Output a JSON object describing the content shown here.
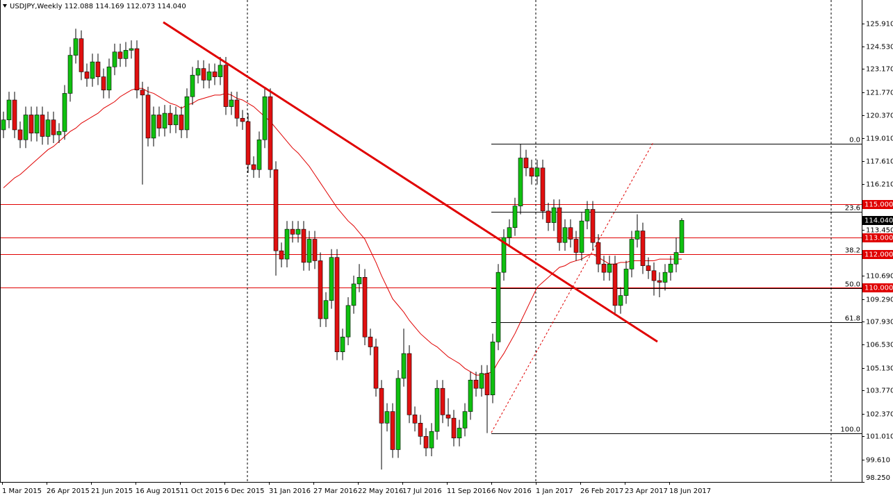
{
  "chart_data": {
    "type": "candlestick",
    "title": "USDJPY,Weekly",
    "up_color": "#10c010",
    "down_color": "#e01010",
    "categories": [
      "1 Mar 2015",
      null,
      null,
      null,
      null,
      null,
      null,
      null,
      "26 Apr 2015",
      null,
      null,
      null,
      null,
      null,
      null,
      null,
      "21 Jun 2015",
      null,
      null,
      null,
      null,
      null,
      null,
      null,
      "16 Aug 2015",
      null,
      null,
      null,
      null,
      null,
      null,
      null,
      "11 Oct 2015",
      null,
      null,
      null,
      null,
      null,
      null,
      null,
      "6 Dec 2015",
      null,
      null,
      null,
      null,
      null,
      null,
      null,
      "31 Jan 2016",
      null,
      null,
      null,
      null,
      null,
      null,
      null,
      "27 Mar 2016",
      null,
      null,
      null,
      null,
      null,
      null,
      null,
      "22 May 2016",
      null,
      null,
      null,
      null,
      null,
      null,
      null,
      "17 Jul 2016",
      null,
      null,
      null,
      null,
      null,
      null,
      null,
      "11 Sep 2016",
      null,
      null,
      null,
      null,
      null,
      null,
      null,
      "6 Nov 2016",
      null,
      null,
      null,
      null,
      null,
      null,
      null,
      "1 Jan 2017",
      null,
      null,
      null,
      null,
      null,
      null,
      null,
      "26 Feb 2017",
      null,
      null,
      null,
      null,
      null,
      null,
      null,
      "23 Apr 2017",
      null,
      null,
      null,
      null,
      null,
      null,
      null,
      "18 Jun 2017",
      null,
      null
    ],
    "open": [
      119.5,
      120.1,
      121.3,
      119.5,
      118.9,
      120.4,
      119.3,
      120.4,
      119.1,
      120.1,
      119.2,
      119.4,
      121.7,
      124.0,
      125.0,
      123.0,
      122.6,
      123.6,
      122.7,
      121.9,
      123.3,
      124.2,
      123.8,
      124.3,
      124.4,
      121.9,
      121.6,
      119.0,
      120.4,
      119.6,
      120.5,
      119.8,
      120.4,
      119.5,
      121.5,
      122.8,
      123.2,
      122.5,
      123.0,
      122.7,
      123.4,
      120.9,
      121.3,
      120.2,
      120.0,
      117.4,
      117.1,
      118.9,
      121.5,
      117.1,
      112.2,
      111.7,
      113.5,
      113.2,
      113.5,
      111.5,
      112.9,
      111.6,
      108.1,
      109.2,
      111.8,
      106.1,
      107.0,
      108.9,
      110.2,
      110.6,
      107.0,
      106.4,
      103.9,
      101.8,
      102.5,
      100.2,
      104.5,
      106.0,
      102.3,
      101.8,
      101.0,
      100.3,
      101.3,
      103.9,
      102.3,
      102.1,
      100.9,
      101.5,
      102.5,
      104.4,
      103.9,
      104.8,
      103.5,
      106.7,
      110.9,
      113.0,
      113.6,
      114.9,
      117.8,
      117.2,
      116.7,
      117.2,
      114.6,
      113.9,
      114.8,
      112.7,
      113.6,
      112.9,
      112.1,
      114.0,
      114.7,
      112.7,
      111.4,
      110.9,
      111.4,
      108.9,
      109.5,
      111.1,
      112.9,
      113.4,
      111.3,
      111.0,
      110.4,
      110.3,
      110.9,
      111.4,
      112.088
    ],
    "high": [
      120.6,
      121.8,
      121.8,
      120.0,
      120.9,
      120.9,
      120.9,
      120.9,
      120.6,
      120.6,
      119.9,
      122.2,
      124.5,
      125.6,
      125.5,
      123.5,
      124.1,
      124.1,
      123.2,
      123.8,
      124.7,
      124.7,
      124.8,
      124.9,
      124.9,
      122.4,
      122.1,
      120.9,
      120.9,
      121.0,
      121.0,
      120.9,
      120.9,
      122.0,
      123.3,
      123.7,
      123.7,
      123.5,
      123.5,
      123.9,
      123.9,
      121.8,
      121.8,
      120.7,
      120.5,
      117.9,
      119.4,
      122.0,
      122.0,
      117.6,
      112.7,
      114.0,
      114.0,
      114.0,
      114.0,
      113.4,
      113.4,
      112.1,
      109.7,
      112.3,
      112.3,
      107.5,
      109.4,
      110.7,
      111.4,
      111.1,
      107.5,
      106.9,
      104.4,
      103.0,
      103.0,
      105.0,
      107.5,
      106.5,
      102.8,
      102.3,
      101.5,
      101.8,
      104.4,
      104.4,
      103.3,
      102.6,
      102.0,
      103.0,
      104.9,
      104.9,
      105.3,
      105.3,
      107.2,
      111.4,
      113.5,
      114.1,
      115.4,
      118.66,
      118.3,
      117.7,
      117.7,
      117.7,
      115.1,
      115.3,
      115.3,
      114.1,
      114.1,
      113.4,
      114.5,
      115.2,
      115.2,
      113.2,
      111.9,
      111.9,
      111.9,
      110.0,
      111.6,
      113.4,
      114.4,
      113.9,
      111.8,
      111.5,
      110.9,
      111.4,
      111.9,
      113.0,
      114.169
    ],
    "low": [
      119.0,
      119.6,
      119.0,
      118.4,
      118.4,
      118.8,
      118.8,
      118.6,
      118.6,
      118.7,
      118.7,
      118.9,
      121.2,
      123.5,
      122.5,
      122.1,
      122.1,
      122.2,
      121.4,
      121.4,
      122.8,
      123.3,
      123.3,
      123.8,
      121.4,
      116.2,
      118.5,
      118.5,
      119.1,
      119.1,
      119.3,
      119.3,
      119.0,
      119.0,
      121.0,
      122.3,
      122.0,
      122.0,
      122.2,
      122.2,
      120.4,
      120.4,
      119.7,
      119.5,
      116.9,
      116.6,
      116.6,
      118.4,
      116.6,
      110.7,
      111.2,
      111.2,
      112.7,
      112.7,
      111.0,
      111.0,
      111.1,
      107.6,
      107.6,
      108.7,
      105.6,
      105.6,
      106.5,
      108.4,
      109.7,
      106.5,
      105.9,
      103.4,
      99.0,
      101.3,
      99.7,
      99.7,
      104.0,
      101.8,
      101.3,
      100.5,
      99.8,
      99.8,
      100.8,
      101.8,
      101.6,
      100.4,
      100.4,
      101.0,
      102.0,
      103.4,
      103.4,
      101.2,
      103.0,
      106.2,
      110.4,
      112.5,
      113.1,
      114.4,
      116.7,
      116.2,
      116.2,
      114.1,
      113.4,
      113.4,
      112.2,
      112.2,
      112.4,
      111.6,
      111.6,
      113.5,
      112.2,
      110.9,
      110.4,
      110.4,
      108.3,
      108.4,
      109.0,
      110.6,
      112.4,
      110.8,
      110.5,
      109.5,
      109.4,
      109.8,
      110.4,
      110.9,
      112.073
    ],
    "close": [
      120.1,
      121.3,
      119.5,
      118.9,
      120.4,
      119.3,
      120.4,
      119.1,
      120.1,
      119.2,
      119.4,
      121.7,
      124.0,
      125.0,
      123.0,
      122.6,
      123.6,
      122.7,
      121.9,
      123.3,
      124.2,
      123.8,
      124.3,
      124.4,
      121.9,
      121.6,
      119.0,
      120.4,
      119.6,
      120.5,
      119.8,
      120.4,
      119.5,
      121.5,
      122.8,
      123.2,
      122.5,
      123.0,
      122.7,
      123.4,
      120.9,
      121.3,
      120.2,
      120.0,
      117.4,
      117.1,
      118.9,
      121.5,
      117.1,
      112.2,
      111.7,
      113.5,
      113.2,
      113.5,
      111.5,
      112.9,
      111.6,
      108.1,
      109.2,
      111.8,
      106.1,
      107.0,
      108.9,
      110.2,
      110.6,
      107.0,
      106.4,
      103.9,
      101.8,
      102.5,
      100.2,
      104.5,
      106.0,
      102.3,
      101.8,
      101.0,
      100.3,
      101.3,
      103.9,
      102.3,
      102.1,
      100.9,
      101.5,
      102.5,
      104.4,
      103.9,
      104.8,
      103.5,
      106.7,
      110.9,
      113.0,
      113.6,
      114.9,
      117.8,
      117.2,
      116.7,
      117.2,
      114.6,
      113.9,
      114.8,
      112.7,
      113.6,
      112.9,
      112.1,
      114.0,
      114.7,
      112.7,
      111.4,
      110.9,
      111.4,
      108.9,
      109.5,
      111.1,
      112.9,
      113.4,
      111.3,
      111.0,
      110.4,
      110.3,
      110.9,
      111.4,
      112.1,
      114.04
    ],
    "moving_average": {
      "color": "#e00000",
      "values": [
        116.0,
        116.3,
        116.6,
        116.8,
        117.1,
        117.4,
        117.7,
        118.0,
        118.3,
        118.5,
        118.8,
        119.1,
        119.4,
        119.6,
        119.9,
        120.1,
        120.3,
        120.5,
        120.8,
        121.0,
        121.2,
        121.5,
        121.7,
        121.9,
        122.0,
        122.0,
        121.8,
        121.7,
        121.5,
        121.3,
        121.1,
        121.0,
        120.8,
        121.0,
        121.1,
        121.3,
        121.4,
        121.5,
        121.6,
        121.6,
        121.7,
        121.6,
        121.4,
        121.3,
        121.1,
        120.9,
        120.6,
        120.3,
        120.0,
        119.6,
        119.2,
        118.8,
        118.4,
        118.1,
        117.7,
        117.3,
        116.8,
        116.3,
        115.8,
        115.3,
        114.8,
        114.4,
        114.0,
        113.7,
        113.3,
        112.9,
        112.2,
        111.5,
        110.7,
        110.0,
        109.3,
        108.9,
        108.5,
        108.0,
        107.6,
        107.2,
        106.9,
        106.6,
        106.4,
        106.1,
        105.8,
        105.6,
        105.4,
        105.1,
        104.9,
        104.7,
        104.7,
        104.8,
        104.9,
        105.5,
        106.0,
        106.6,
        107.2,
        107.9,
        108.6,
        109.3,
        110.0,
        110.3,
        110.6,
        110.9,
        111.2,
        111.3,
        111.5,
        111.6,
        111.7,
        111.9,
        112.0,
        111.8,
        111.6,
        111.4,
        111.4,
        111.5,
        111.5,
        111.6,
        111.6,
        111.6,
        111.6,
        111.6,
        111.7,
        111.7,
        111.7,
        111.7,
        111.7
      ]
    },
    "ylim": [
      98.25,
      127.335
    ],
    "yticks": [
      {
        "value": 125.91,
        "label": "125.910"
      },
      {
        "value": 124.53,
        "label": "124.530"
      },
      {
        "value": 123.17,
        "label": "123.170"
      },
      {
        "value": 121.77,
        "label": "121.770"
      },
      {
        "value": 120.37,
        "label": "120.370"
      },
      {
        "value": 119.01,
        "label": "119.010"
      },
      {
        "value": 117.61,
        "label": "117.610"
      },
      {
        "value": 116.21,
        "label": "116.210"
      },
      {
        "value": 113.45,
        "label": "113.450"
      },
      {
        "value": 110.69,
        "label": "110.690"
      },
      {
        "value": 109.29,
        "label": "109.290"
      },
      {
        "value": 107.93,
        "label": "107.930"
      },
      {
        "value": 106.53,
        "label": "106.530"
      },
      {
        "value": 105.13,
        "label": "105.130"
      },
      {
        "value": 103.77,
        "label": "103.770"
      },
      {
        "value": 102.37,
        "label": "102.370"
      },
      {
        "value": 101.01,
        "label": "101.010"
      },
      {
        "value": 99.61,
        "label": "99.610"
      },
      {
        "value": 98.25,
        "label": "98.250"
      }
    ],
    "levels": [
      {
        "value": 115,
        "label": "115.000"
      },
      {
        "value": 113,
        "label": "113.000"
      },
      {
        "value": 112,
        "label": "112.000"
      },
      {
        "value": 110,
        "label": "110.000"
      }
    ],
    "level_color": "#e00000",
    "current_price": {
      "value": 114.04,
      "label": "114.040"
    },
    "fibonacci": [
      {
        "value": 118.66,
        "label": "0.0"
      },
      {
        "value": 114.54,
        "label": "23.6"
      },
      {
        "value": 112.0,
        "label": "38.2"
      },
      {
        "value": 109.93,
        "label": "50.0"
      },
      {
        "value": 107.87,
        "label": "61.8"
      },
      {
        "value": 101.2,
        "label": "100.0"
      }
    ]
  }
}
